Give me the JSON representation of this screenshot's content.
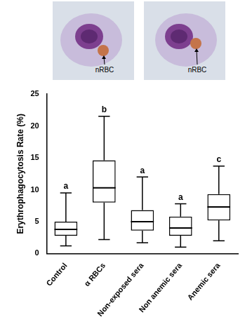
{
  "images": [
    {
      "annotation": "nRBC"
    },
    {
      "annotation": "nRBC"
    }
  ],
  "chart_data": {
    "type": "box",
    "y_label": "Erythrophagocytosis Rate (%)",
    "categories": [
      "Control",
      "α RBCs",
      "Non-exposed sera",
      "Non anemic sera",
      "Anemic sera"
    ],
    "min": [
      1.2,
      2.2,
      1.7,
      1.0,
      2.0
    ],
    "q1": [
      2.8,
      8.0,
      3.6,
      2.8,
      5.2
    ],
    "median": [
      3.8,
      10.3,
      5.0,
      4.0,
      7.3
    ],
    "q3": [
      5.0,
      14.6,
      6.8,
      5.8,
      9.3
    ],
    "max": [
      9.5,
      21.5,
      12.0,
      7.8,
      13.7
    ],
    "annotations": [
      "a",
      "b",
      "a",
      "a",
      "c"
    ],
    "color": "#000000",
    "ylim": [
      0,
      25
    ],
    "yticks": [
      0,
      5,
      10,
      15,
      20,
      25
    ],
    "grid": false
  }
}
